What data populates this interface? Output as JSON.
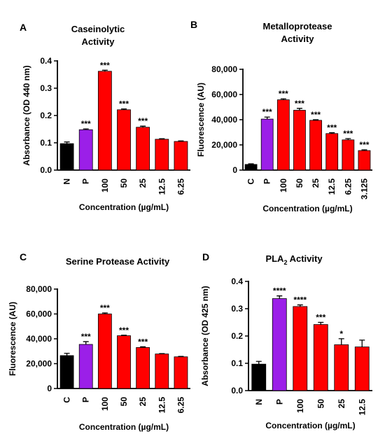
{
  "colors": {
    "control": "#000000",
    "positive": "#9b1fe8",
    "sample": "#ff0000"
  },
  "chart_data": [
    {
      "type": "bar",
      "panel": "A",
      "title": [
        "Caseinolytic",
        "Activity"
      ],
      "xlabel": "Concentration (µg/mL)",
      "ylabel": "Absorbance (OD  440 nm)",
      "ylim": [
        0,
        0.4
      ],
      "yticks": [
        "0.0",
        "0.1",
        "0.2",
        "0.3",
        "0.4"
      ],
      "categories": [
        "N",
        "P",
        "100",
        "50",
        "25",
        "12.5",
        "6.25"
      ],
      "values": [
        0.097,
        0.148,
        0.362,
        0.221,
        0.157,
        0.113,
        0.105
      ],
      "errors": [
        0.006,
        0.003,
        0.004,
        0.003,
        0.004,
        0.002,
        0.002
      ],
      "significance": [
        "",
        "***",
        "***",
        "***",
        "***",
        "",
        ""
      ],
      "bar_colors": [
        "control",
        "positive",
        "sample",
        "sample",
        "sample",
        "sample",
        "sample"
      ],
      "grid": false
    },
    {
      "type": "bar",
      "panel": "B",
      "title": [
        "Metalloprotease",
        "Activity"
      ],
      "xlabel": "Concentration (µg/mL)",
      "ylabel": "Fluorescence (AU)",
      "ylim": [
        0,
        80000
      ],
      "yticks": [
        "0",
        "20,000",
        "40,000",
        "60,000",
        "80,000"
      ],
      "categories": [
        "C",
        "P",
        "100",
        "50",
        "25",
        "12.5",
        "6.25",
        "3.125"
      ],
      "values": [
        4500,
        40500,
        55800,
        47500,
        39500,
        29000,
        24000,
        15500
      ],
      "errors": [
        500,
        1600,
        800,
        1500,
        500,
        700,
        1000,
        600
      ],
      "significance": [
        "",
        "***",
        "***",
        "***",
        "***",
        "***",
        "***",
        "***"
      ],
      "bar_colors": [
        "control",
        "positive",
        "sample",
        "sample",
        "sample",
        "sample",
        "sample",
        "sample"
      ],
      "grid": false
    },
    {
      "type": "bar",
      "panel": "C",
      "title": [
        "Serine Protease Activity"
      ],
      "xlabel": "Concentration (µg/mL)",
      "ylabel": "Fluorescence (AU)",
      "ylim": [
        0,
        80000
      ],
      "yticks": [
        "0",
        "20,000",
        "40,000",
        "60,000",
        "80,000"
      ],
      "categories": [
        "C",
        "P",
        "100",
        "50",
        "25",
        "12.5",
        "6.25"
      ],
      "values": [
        26500,
        35500,
        60000,
        42500,
        33000,
        27800,
        25500
      ],
      "errors": [
        1800,
        2200,
        800,
        400,
        600,
        300,
        300
      ],
      "significance": [
        "",
        "***",
        "***",
        "***",
        "***",
        "",
        ""
      ],
      "bar_colors": [
        "control",
        "positive",
        "sample",
        "sample",
        "sample",
        "sample",
        "sample"
      ],
      "grid": false
    },
    {
      "type": "bar",
      "panel": "D",
      "title": [
        "PLA",
        "2",
        " Activity"
      ],
      "xlabel": "Concentration (µg/mL)",
      "ylabel": "Absorbance (OD  425 nm)",
      "ylim": [
        0,
        0.4
      ],
      "yticks": [
        "0.0",
        "0.1",
        "0.2",
        "0.3",
        "0.4"
      ],
      "categories": [
        "N",
        "P",
        "100",
        "50",
        "25",
        "12.5"
      ],
      "values": [
        0.097,
        0.337,
        0.308,
        0.242,
        0.168,
        0.16
      ],
      "errors": [
        0.01,
        0.01,
        0.006,
        0.008,
        0.022,
        0.025
      ],
      "significance": [
        "",
        "****",
        "****",
        "***",
        "*",
        ""
      ],
      "bar_colors": [
        "control",
        "positive",
        "sample",
        "sample",
        "sample",
        "sample"
      ],
      "grid": false
    }
  ]
}
